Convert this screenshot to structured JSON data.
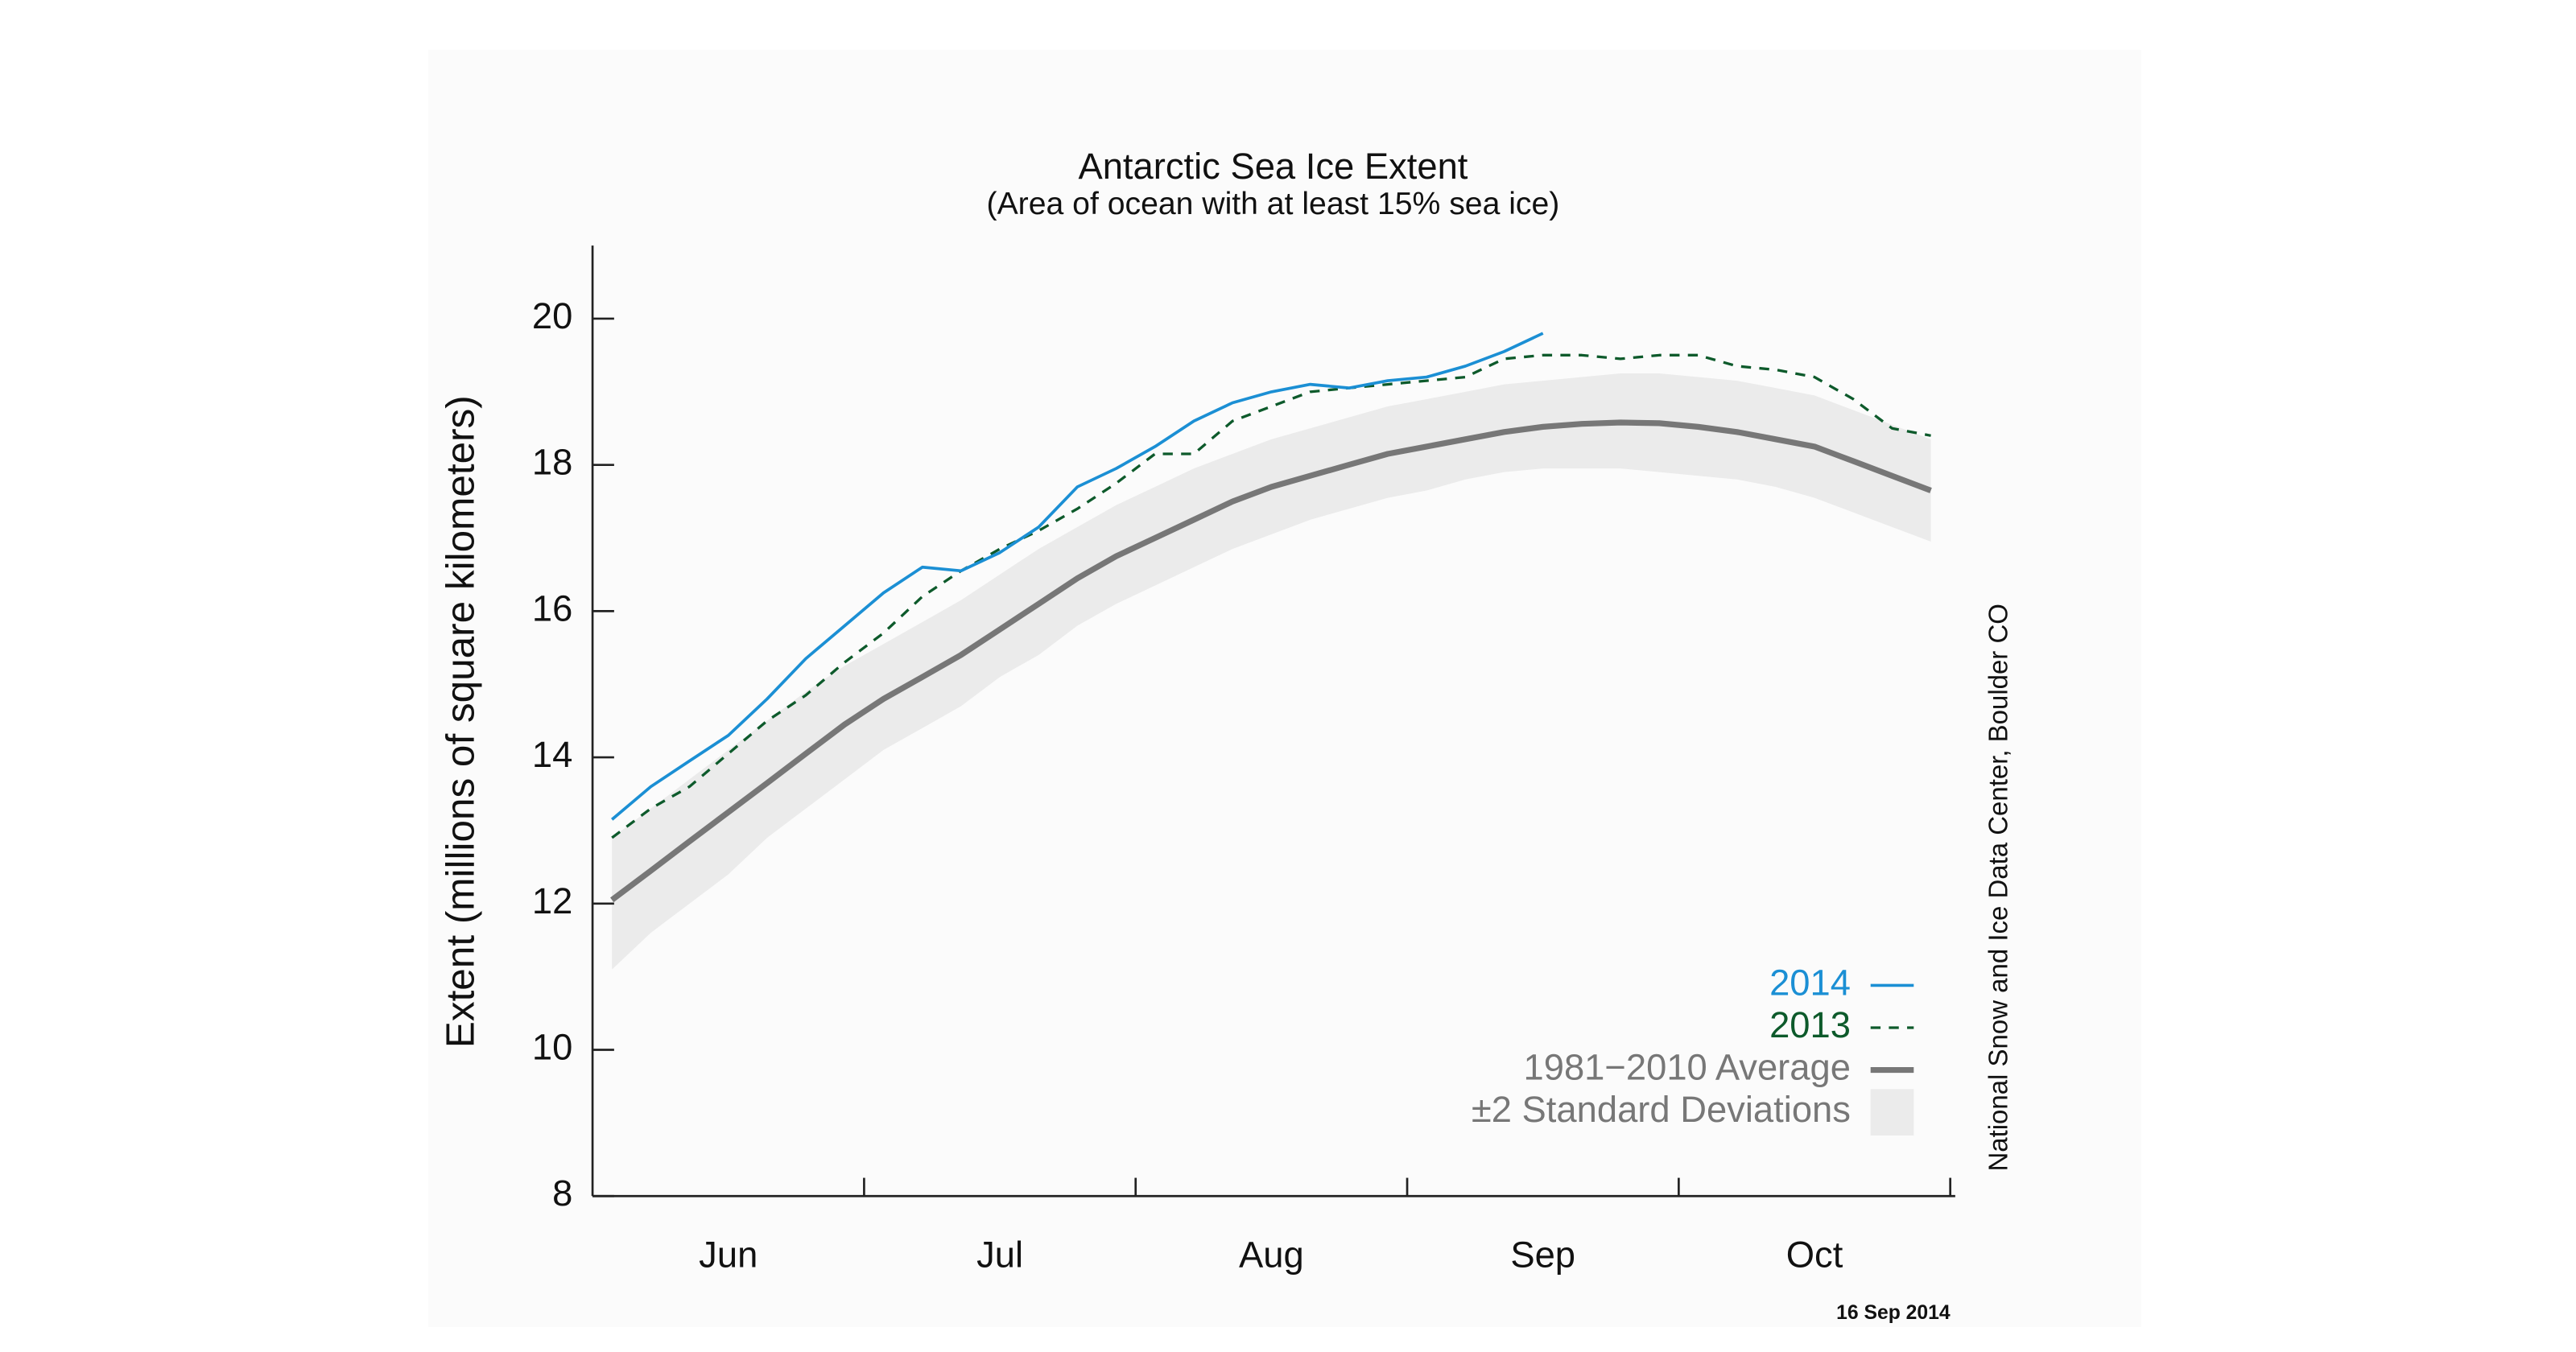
{
  "chart_data": {
    "type": "line",
    "title": "Antarctic Sea Ice Extent",
    "subtitle": "(Area of ocean with at least 15% sea ice)",
    "y_label": "Extent (millions of square kilometers)",
    "source": "National Snow and Ice Data Center, Boulder CO",
    "date": "16 Sep 2014",
    "categories": [
      null,
      null,
      null,
      "Jun",
      null,
      null,
      null,
      null,
      null,
      null,
      "Jul",
      null,
      null,
      null,
      null,
      null,
      null,
      "Aug",
      null,
      null,
      null,
      null,
      null,
      null,
      "Sep",
      null,
      null,
      null,
      null,
      null,
      null,
      "Oct",
      null,
      null,
      null
    ],
    "ylim": [
      8,
      21
    ],
    "yticks": [
      8,
      10,
      12,
      14,
      16,
      18,
      20
    ],
    "legend": "bottom-right",
    "band": {
      "name": "±2 Standard Deviations",
      "color": "#ebebeb",
      "lower": [
        11.1,
        11.6,
        12.0,
        12.4,
        12.9,
        13.3,
        13.7,
        14.1,
        14.4,
        14.7,
        15.1,
        15.4,
        15.8,
        16.1,
        16.35,
        16.6,
        16.85,
        17.05,
        17.25,
        17.4,
        17.55,
        17.65,
        17.8,
        17.9,
        17.95,
        17.95,
        17.95,
        17.9,
        17.85,
        17.8,
        17.7,
        17.55,
        17.35,
        17.15,
        16.95
      ],
      "upper": [
        12.9,
        13.3,
        13.7,
        14.1,
        14.5,
        14.9,
        15.25,
        15.55,
        15.85,
        16.15,
        16.5,
        16.85,
        17.15,
        17.45,
        17.7,
        17.95,
        18.15,
        18.35,
        18.5,
        18.65,
        18.8,
        18.9,
        19.0,
        19.1,
        19.15,
        19.2,
        19.25,
        19.25,
        19.2,
        19.15,
        19.05,
        18.95,
        18.75,
        18.55,
        18.35
      ]
    },
    "series": [
      {
        "name": "2014",
        "color": "#1b8fd4",
        "line_style": "solid",
        "width": 1.8,
        "values": [
          13.15,
          13.6,
          13.95,
          14.3,
          14.8,
          15.35,
          15.8,
          16.25,
          16.6,
          16.55,
          16.8,
          17.15,
          17.7,
          17.95,
          18.25,
          18.6,
          18.85,
          19.0,
          19.1,
          19.05,
          19.15,
          19.2,
          19.35,
          19.55,
          19.8,
          null,
          null,
          null,
          null,
          null,
          null,
          null,
          null,
          null,
          null
        ]
      },
      {
        "name": "2013",
        "color": "#0d5a2b",
        "line_style": "dashed",
        "width": 1.6,
        "values": [
          12.9,
          13.3,
          13.6,
          14.05,
          14.5,
          14.85,
          15.3,
          15.7,
          16.2,
          16.55,
          16.85,
          17.1,
          17.4,
          17.75,
          18.15,
          18.15,
          18.6,
          18.8,
          19.0,
          19.05,
          19.1,
          19.15,
          19.2,
          19.45,
          19.5,
          19.5,
          19.45,
          19.5,
          19.5,
          19.35,
          19.3,
          19.2,
          18.9,
          18.5,
          18.4
        ]
      },
      {
        "name": "1981−2010 Average",
        "color": "#777777",
        "line_style": "solid",
        "width": 3.5,
        "values": [
          12.05,
          12.45,
          12.85,
          13.25,
          13.65,
          14.05,
          14.45,
          14.8,
          15.1,
          15.4,
          15.75,
          16.1,
          16.45,
          16.75,
          17.0,
          17.25,
          17.5,
          17.7,
          17.85,
          18.0,
          18.15,
          18.25,
          18.35,
          18.45,
          18.52,
          18.56,
          18.58,
          18.57,
          18.52,
          18.45,
          18.35,
          18.25,
          18.05,
          17.85,
          17.65
        ]
      }
    ]
  }
}
